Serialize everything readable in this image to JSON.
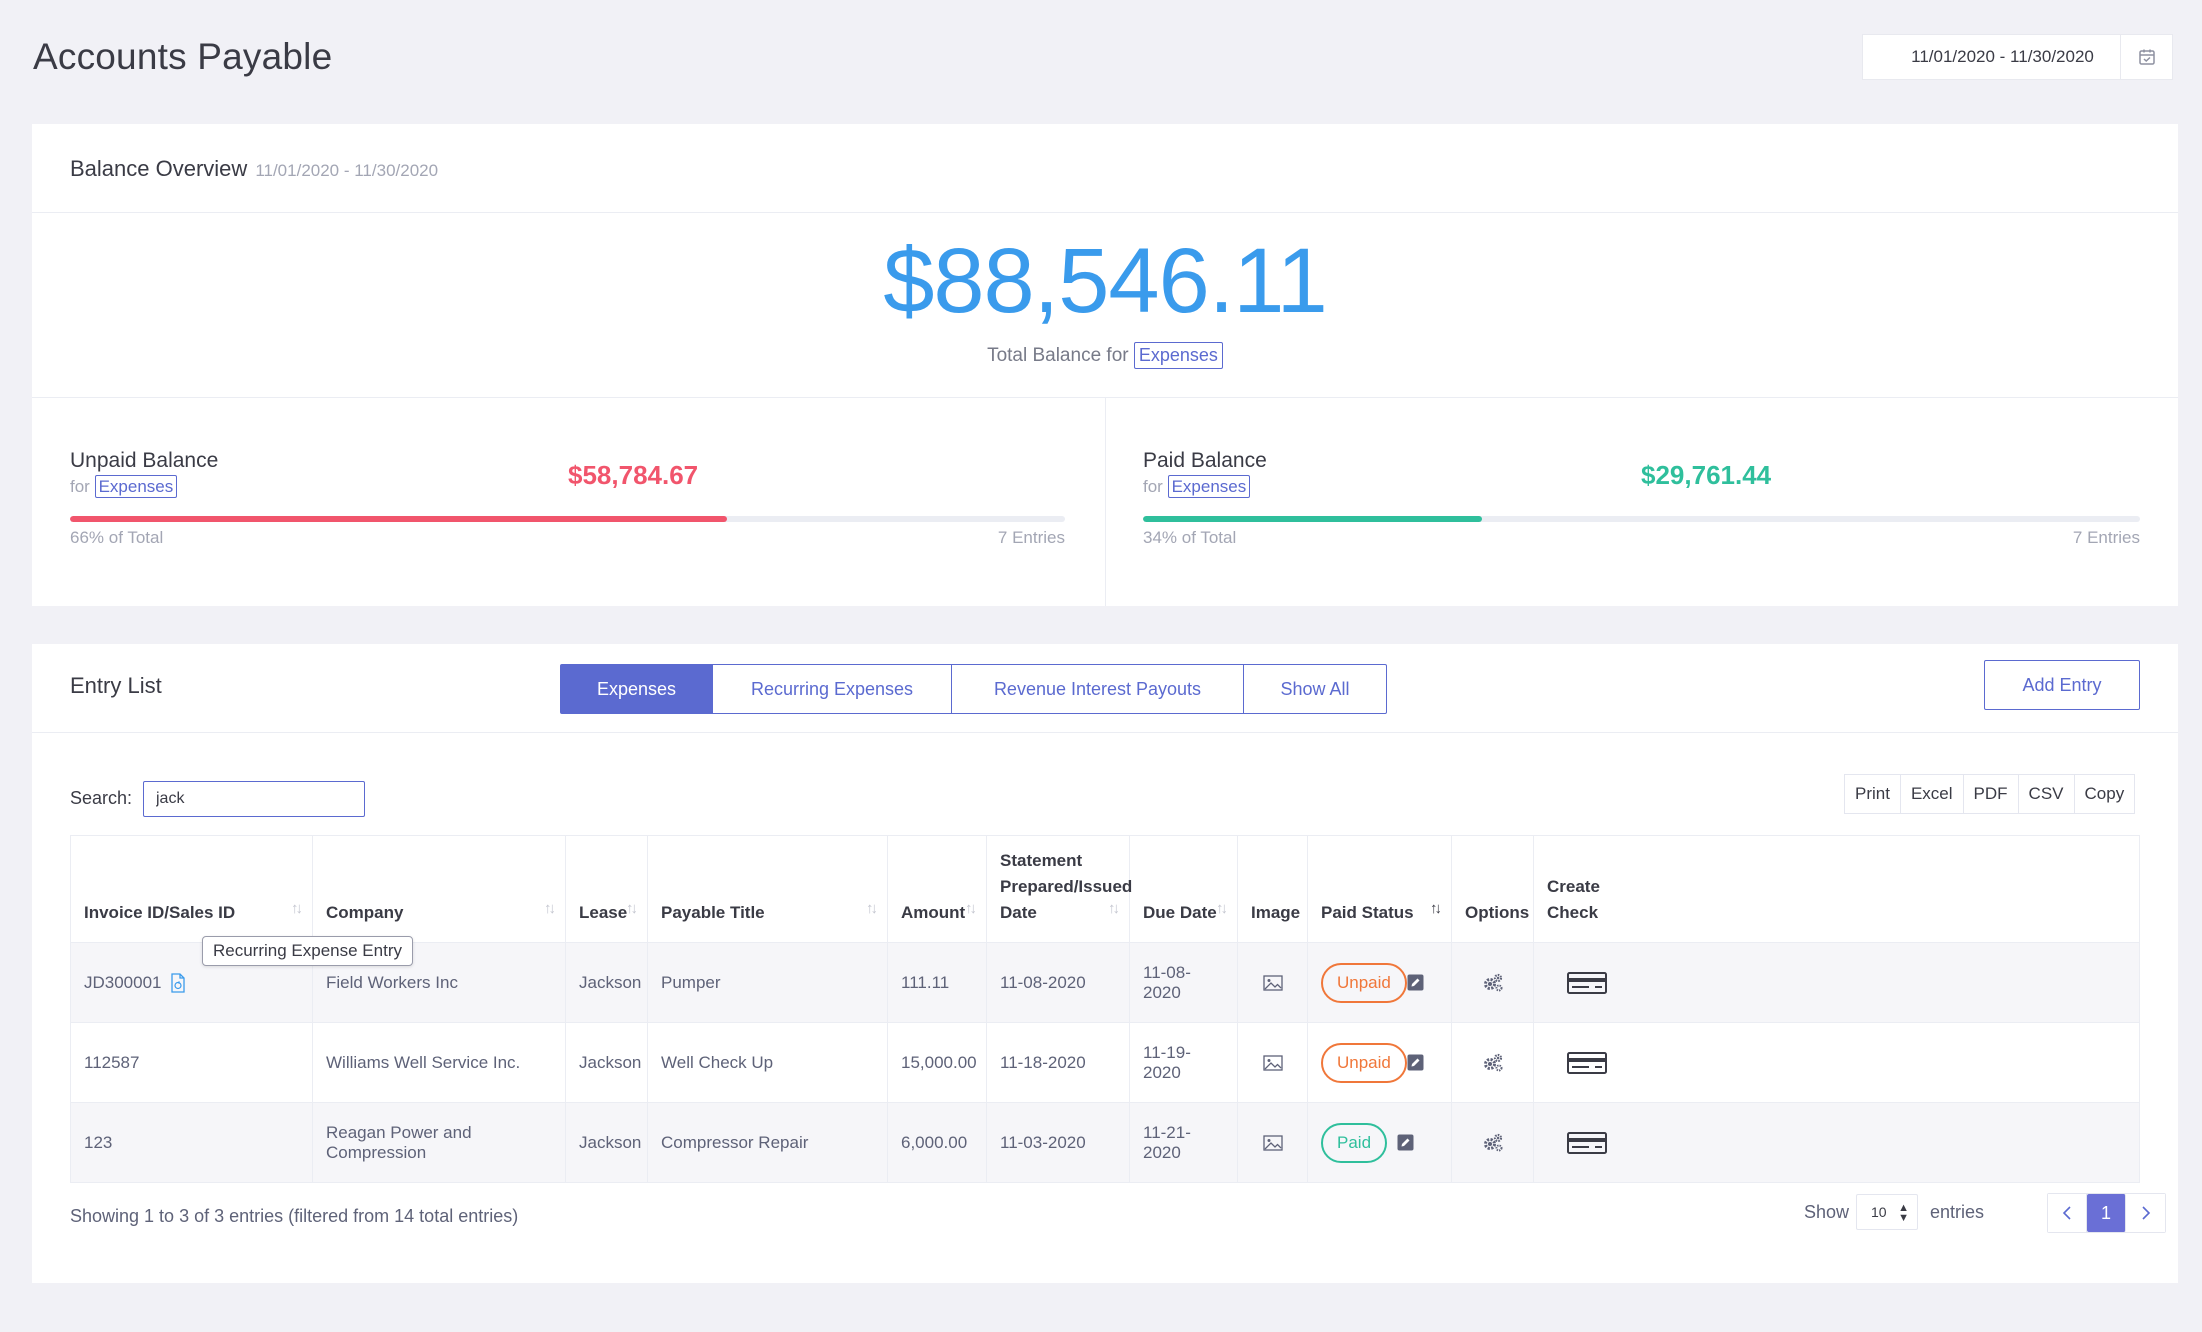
{
  "header": {
    "title": "Accounts Payable",
    "date_range": "11/01/2020 - 11/30/2020"
  },
  "overview": {
    "title": "Balance Overview",
    "subtitle": "11/01/2020 - 11/30/2020",
    "total_amount": "$88,546.11",
    "total_label": "Total Balance for",
    "total_tag": "Expenses",
    "unpaid": {
      "label": "Unpaid Balance",
      "for": "for",
      "tag": "Expenses",
      "amount": "$58,784.67",
      "percent_text": "66% of Total",
      "fraction": 0.66,
      "entries": "7 Entries",
      "color": "#f1556c"
    },
    "paid": {
      "label": "Paid Balance",
      "for": "for",
      "tag": "Expenses",
      "amount": "$29,761.44",
      "percent_text": "34% of Total",
      "fraction": 0.34,
      "entries": "7 Entries",
      "color": "#2fbf9c"
    }
  },
  "entry_list": {
    "title": "Entry List",
    "tabs": [
      {
        "label": "Expenses",
        "active": true
      },
      {
        "label": "Recurring Expenses",
        "active": false
      },
      {
        "label": "Revenue Interest Payouts",
        "active": false
      },
      {
        "label": "Show All",
        "active": false
      }
    ],
    "add_button": "Add Entry",
    "search_label": "Search:",
    "search_value": "jack",
    "export_buttons": [
      "Print",
      "Excel",
      "PDF",
      "CSV",
      "Copy"
    ],
    "columns": [
      "Invoice ID/Sales ID",
      "Company",
      "Lease",
      "Payable Title",
      "Amount",
      "Statement Prepared/Issued Date",
      "Due Date",
      "Image",
      "Paid Status",
      "Options",
      "Create Check"
    ],
    "rows": [
      {
        "invoice": "JD300001",
        "company": "Field Workers Inc",
        "lease": "Jackson",
        "title": "Pumper",
        "amount": "111.11",
        "statement_date": "11-08-2020",
        "due_date": "11-08-2020",
        "status": "Unpaid"
      },
      {
        "invoice": "112587",
        "company": "Williams Well Service Inc.",
        "lease": "Jackson",
        "title": "Well Check Up",
        "amount": "15,000.00",
        "statement_date": "11-18-2020",
        "due_date": "11-19-2020",
        "status": "Unpaid"
      },
      {
        "invoice": "123",
        "company": "Reagan Power and Compression",
        "lease": "Jackson",
        "title": "Compressor Repair",
        "amount": "6,000.00",
        "statement_date": "11-03-2020",
        "due_date": "11-21-2020",
        "status": "Paid"
      }
    ],
    "tooltip": "Recurring Expense Entry",
    "footer": {
      "showing": "Showing 1 to 3 of 3 entries (filtered from 14 total entries)",
      "show_label": "Show",
      "page_size": "10",
      "entries_label": "entries",
      "current_page": "1"
    },
    "icons": {
      "calendar": "calendar-check-icon",
      "recurring": "recurring-document-icon",
      "image": "image-icon",
      "edit": "edit-square-icon",
      "options": "gears-icon",
      "check": "check-card-icon",
      "sort": "sort-arrows-icon"
    }
  }
}
